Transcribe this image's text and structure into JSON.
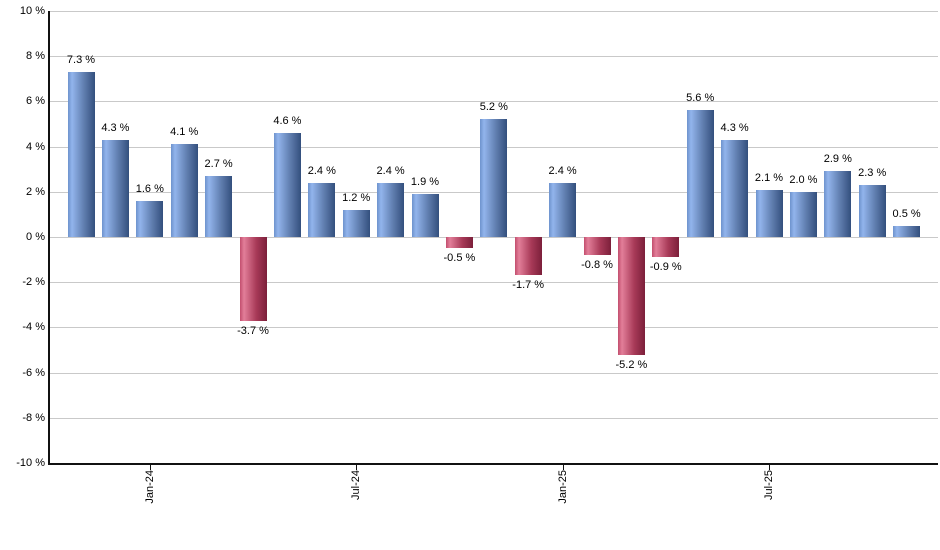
{
  "chart_data": {
    "type": "bar",
    "title": "",
    "xlabel": "",
    "ylabel": "",
    "ylim": [
      -10,
      10
    ],
    "y_tick_step": 2,
    "grid": true,
    "legend": "none",
    "values": [
      7.3,
      4.3,
      1.6,
      4.1,
      2.7,
      -3.7,
      4.6,
      2.4,
      1.2,
      2.4,
      1.9,
      -0.5,
      5.2,
      -1.7,
      2.4,
      -0.8,
      -5.2,
      -0.9,
      5.6,
      4.3,
      2.1,
      2.0,
      2.9,
      2.3,
      0.5
    ],
    "bar_labels": [
      "7.3 %",
      "4.3 %",
      "1.6 %",
      "4.1 %",
      "2.7 %",
      "-3.7 %",
      "4.6 %",
      "2.4 %",
      "1.2 %",
      "2.4 %",
      "1.9 %",
      "-0.5 %",
      "5.2 %",
      "-1.7 %",
      "2.4 %",
      "-0.8 %",
      "-5.2 %",
      "-0.9 %",
      "5.6 %",
      "4.3 %",
      "2.1 %",
      "2.0 %",
      "2.9 %",
      "2.3 %",
      "0.5 %"
    ],
    "x_ticks": [
      {
        "label": "Jan-24",
        "index": 2
      },
      {
        "label": "Jul-24",
        "index": 8
      },
      {
        "label": "Jan-25",
        "index": 14
      },
      {
        "label": "Jul-25",
        "index": 20
      }
    ],
    "y_tick_labels": [
      "10 %",
      "8 %",
      "6 %",
      "4 %",
      "2 %",
      "0 %",
      "-2 %",
      "-4 %",
      "-6 %",
      "-8 %",
      "-10 %"
    ],
    "colors": {
      "gridline": "#c9c9c9",
      "axis": "#111111",
      "label_text": "#000000",
      "positive_bar": {
        "edge": "#6E93CD",
        "light": "#92B4EC",
        "mid": "#5F7DAE",
        "dark": "#334F7D"
      },
      "negative_bar": {
        "edge": "#C24E6E",
        "light": "#E27E99",
        "mid": "#A83A58",
        "dark": "#7C1F3A"
      }
    }
  }
}
